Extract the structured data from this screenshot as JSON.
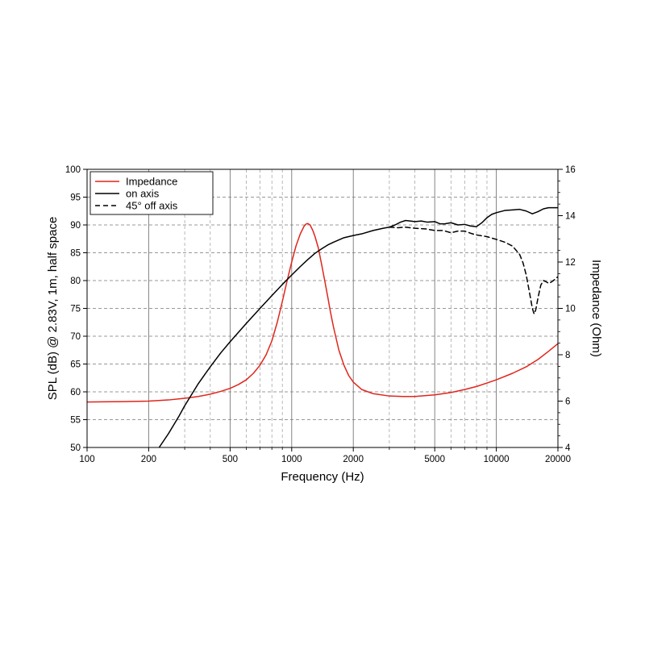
{
  "chart_data": {
    "type": "line",
    "title": "",
    "xlabel": "Frequency (Hz)",
    "ylabel": "SPL (dB) @ 2.83V, 1m, half space",
    "y2label": "Impedance (Ohm)",
    "xscale": "log",
    "xlim": [
      100,
      20000
    ],
    "ylim": [
      50,
      100
    ],
    "y2lim": [
      4,
      16
    ],
    "grid": true,
    "legend_position": "top-left",
    "x_ticks": [
      100,
      200,
      500,
      1000,
      2000,
      5000,
      10000,
      20000
    ],
    "x_tick_labels": [
      "100",
      "200",
      "500",
      "1000",
      "2000",
      "5000",
      "10000",
      "20000"
    ],
    "y_ticks": [
      50,
      55,
      60,
      65,
      70,
      75,
      80,
      85,
      90,
      95,
      100
    ],
    "y_tick_labels": [
      "50",
      "55",
      "60",
      "65",
      "70",
      "75",
      "80",
      "85",
      "90",
      "95",
      "100"
    ],
    "y2_ticks": [
      4,
      6,
      8,
      10,
      12,
      14,
      16
    ],
    "y2_tick_labels": [
      "4",
      "6",
      "8",
      "10",
      "12",
      "14",
      "16"
    ],
    "series": [
      {
        "name": "Impedance",
        "axis": "right",
        "color": "#e0251b",
        "dash": "solid",
        "points": [
          [
            100,
            5.96
          ],
          [
            150,
            5.98
          ],
          [
            200,
            6.0
          ],
          [
            250,
            6.05
          ],
          [
            300,
            6.12
          ],
          [
            350,
            6.2
          ],
          [
            400,
            6.3
          ],
          [
            450,
            6.42
          ],
          [
            500,
            6.55
          ],
          [
            550,
            6.72
          ],
          [
            600,
            6.92
          ],
          [
            650,
            7.2
          ],
          [
            700,
            7.55
          ],
          [
            750,
            8.0
          ],
          [
            800,
            8.6
          ],
          [
            850,
            9.4
          ],
          [
            900,
            10.3
          ],
          [
            950,
            11.2
          ],
          [
            1000,
            12.0
          ],
          [
            1050,
            12.7
          ],
          [
            1100,
            13.2
          ],
          [
            1150,
            13.55
          ],
          [
            1180,
            13.65
          ],
          [
            1200,
            13.66
          ],
          [
            1230,
            13.6
          ],
          [
            1270,
            13.35
          ],
          [
            1300,
            13.1
          ],
          [
            1350,
            12.6
          ],
          [
            1400,
            11.9
          ],
          [
            1450,
            11.2
          ],
          [
            1500,
            10.5
          ],
          [
            1550,
            9.8
          ],
          [
            1600,
            9.2
          ],
          [
            1700,
            8.2
          ],
          [
            1800,
            7.55
          ],
          [
            1900,
            7.1
          ],
          [
            2000,
            6.82
          ],
          [
            2200,
            6.5
          ],
          [
            2500,
            6.32
          ],
          [
            3000,
            6.22
          ],
          [
            3500,
            6.2
          ],
          [
            4000,
            6.2
          ],
          [
            5000,
            6.27
          ],
          [
            6000,
            6.37
          ],
          [
            7000,
            6.5
          ],
          [
            8000,
            6.63
          ],
          [
            9000,
            6.78
          ],
          [
            10000,
            6.92
          ],
          [
            12000,
            7.2
          ],
          [
            14000,
            7.48
          ],
          [
            16000,
            7.8
          ],
          [
            18000,
            8.15
          ],
          [
            20000,
            8.48
          ]
        ]
      },
      {
        "name": "on axis",
        "axis": "left",
        "color": "#000000",
        "dash": "solid",
        "points": [
          [
            225,
            50.0
          ],
          [
            250,
            52.5
          ],
          [
            280,
            55.5
          ],
          [
            300,
            57.5
          ],
          [
            350,
            61.5
          ],
          [
            400,
            64.5
          ],
          [
            450,
            67.0
          ],
          [
            500,
            69.0
          ],
          [
            600,
            72.3
          ],
          [
            700,
            75.0
          ],
          [
            800,
            77.3
          ],
          [
            900,
            79.3
          ],
          [
            1000,
            81.0
          ],
          [
            1100,
            82.5
          ],
          [
            1200,
            83.8
          ],
          [
            1300,
            84.9
          ],
          [
            1400,
            85.7
          ],
          [
            1500,
            86.4
          ],
          [
            1600,
            86.9
          ],
          [
            1800,
            87.7
          ],
          [
            2000,
            88.1
          ],
          [
            2200,
            88.4
          ],
          [
            2500,
            89.0
          ],
          [
            2800,
            89.4
          ],
          [
            3000,
            89.6
          ],
          [
            3200,
            90.0
          ],
          [
            3400,
            90.5
          ],
          [
            3600,
            90.8
          ],
          [
            3800,
            90.7
          ],
          [
            4000,
            90.6
          ],
          [
            4300,
            90.7
          ],
          [
            4600,
            90.5
          ],
          [
            5000,
            90.6
          ],
          [
            5300,
            90.2
          ],
          [
            5600,
            90.2
          ],
          [
            6000,
            90.4
          ],
          [
            6500,
            90.0
          ],
          [
            7000,
            90.1
          ],
          [
            7500,
            89.8
          ],
          [
            8000,
            89.7
          ],
          [
            8500,
            90.4
          ],
          [
            9000,
            91.3
          ],
          [
            9500,
            91.9
          ],
          [
            10000,
            92.2
          ],
          [
            11000,
            92.6
          ],
          [
            12000,
            92.7
          ],
          [
            13000,
            92.8
          ],
          [
            14000,
            92.5
          ],
          [
            15000,
            92.0
          ],
          [
            16000,
            92.4
          ],
          [
            17000,
            92.9
          ],
          [
            18000,
            93.1
          ],
          [
            20000,
            93.1
          ]
        ]
      },
      {
        "name": "45° off axis",
        "axis": "left",
        "color": "#000000",
        "dash": "dashed",
        "points": [
          [
            3000,
            89.6
          ],
          [
            3300,
            89.5
          ],
          [
            3600,
            89.6
          ],
          [
            4000,
            89.4
          ],
          [
            4500,
            89.3
          ],
          [
            5000,
            89.0
          ],
          [
            5500,
            89.0
          ],
          [
            6000,
            88.6
          ],
          [
            6500,
            88.9
          ],
          [
            7000,
            88.9
          ],
          [
            7500,
            88.5
          ],
          [
            8000,
            88.2
          ],
          [
            9000,
            87.9
          ],
          [
            10000,
            87.4
          ],
          [
            11000,
            86.9
          ],
          [
            12000,
            86.2
          ],
          [
            13000,
            84.7
          ],
          [
            13500,
            83.2
          ],
          [
            14000,
            81.0
          ],
          [
            14500,
            78.0
          ],
          [
            15000,
            75.0
          ],
          [
            15300,
            74.0
          ],
          [
            15600,
            74.8
          ],
          [
            16000,
            77.0
          ],
          [
            16500,
            79.2
          ],
          [
            17000,
            80.0
          ],
          [
            17500,
            79.8
          ],
          [
            18000,
            79.5
          ],
          [
            18500,
            79.7
          ],
          [
            19000,
            80.0
          ],
          [
            20000,
            80.7
          ]
        ]
      }
    ]
  }
}
